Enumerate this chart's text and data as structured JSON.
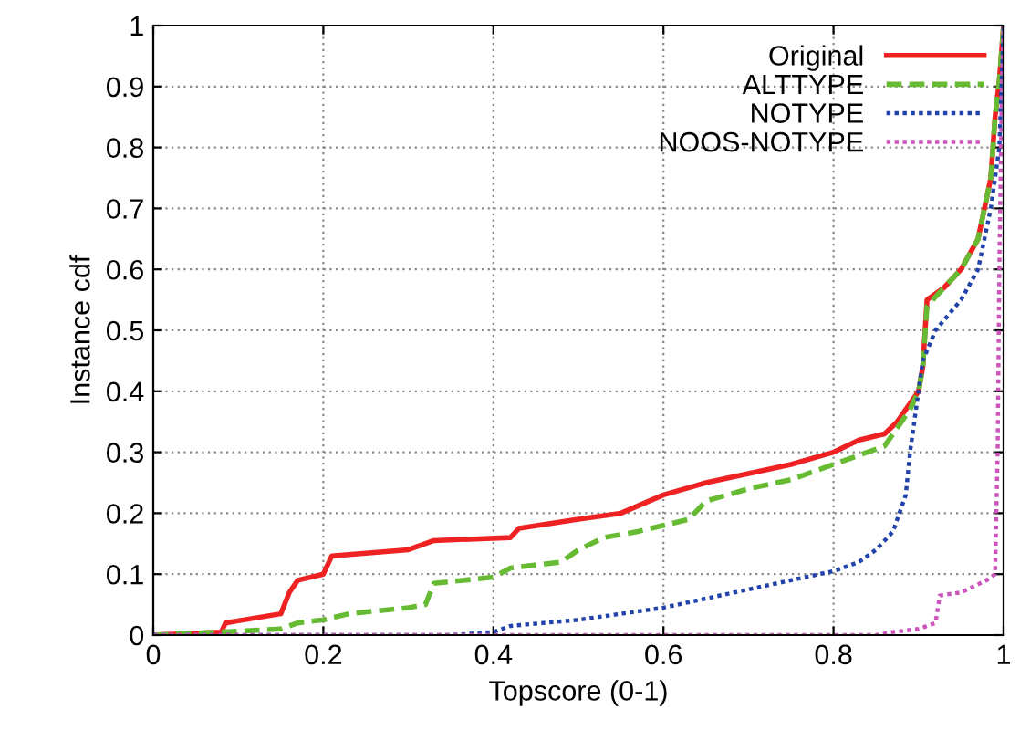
{
  "chart_data": {
    "type": "line",
    "xlabel": "Topscore (0-1)",
    "ylabel": "Instance cdf",
    "xlim": [
      0,
      1
    ],
    "ylim": [
      0,
      1
    ],
    "xticks": [
      0,
      0.2,
      0.4,
      0.6,
      0.8,
      1
    ],
    "yticks": [
      0,
      0.1,
      0.2,
      0.3,
      0.4,
      0.5,
      0.6,
      0.7,
      0.8,
      0.9,
      1
    ],
    "grid": true,
    "legend": "top right",
    "marker": "none",
    "series": [
      {
        "name": "Original",
        "color": "#ee2222",
        "line_style": "solid",
        "x": [
          0,
          0.08,
          0.085,
          0.15,
          0.16,
          0.17,
          0.2,
          0.21,
          0.3,
          0.33,
          0.42,
          0.43,
          0.5,
          0.55,
          0.6,
          0.65,
          0.7,
          0.75,
          0.8,
          0.83,
          0.86,
          0.875,
          0.89,
          0.9,
          0.905,
          0.91,
          0.93,
          0.95,
          0.97,
          0.985,
          0.99,
          0.995,
          1
        ],
        "values": [
          0,
          0.005,
          0.02,
          0.035,
          0.07,
          0.09,
          0.1,
          0.13,
          0.14,
          0.155,
          0.16,
          0.175,
          0.19,
          0.2,
          0.23,
          0.25,
          0.265,
          0.28,
          0.3,
          0.32,
          0.33,
          0.35,
          0.38,
          0.4,
          0.44,
          0.55,
          0.57,
          0.6,
          0.65,
          0.75,
          0.85,
          0.91,
          1
        ]
      },
      {
        "name": "ALTTYPE",
        "color": "#66bb33",
        "line_style": "dashed",
        "x": [
          0,
          0.08,
          0.15,
          0.17,
          0.2,
          0.23,
          0.3,
          0.32,
          0.33,
          0.4,
          0.42,
          0.48,
          0.5,
          0.53,
          0.57,
          0.6,
          0.63,
          0.65,
          0.7,
          0.75,
          0.8,
          0.86,
          0.875,
          0.89,
          0.9,
          0.905,
          0.91,
          0.93,
          0.95,
          0.97,
          0.985,
          0.99,
          0.995,
          1
        ],
        "values": [
          0,
          0.005,
          0.01,
          0.02,
          0.025,
          0.035,
          0.045,
          0.05,
          0.085,
          0.095,
          0.11,
          0.12,
          0.14,
          0.16,
          0.17,
          0.18,
          0.19,
          0.22,
          0.24,
          0.255,
          0.28,
          0.31,
          0.34,
          0.37,
          0.4,
          0.44,
          0.54,
          0.57,
          0.6,
          0.65,
          0.75,
          0.85,
          0.91,
          1
        ]
      },
      {
        "name": "NOTYPE",
        "color": "#2244aa",
        "line_style": "dotted",
        "x": [
          0,
          0.35,
          0.4,
          0.42,
          0.5,
          0.55,
          0.6,
          0.65,
          0.7,
          0.75,
          0.8,
          0.83,
          0.85,
          0.87,
          0.885,
          0.89,
          0.9,
          0.905,
          0.92,
          0.95,
          0.97,
          0.985,
          0.995,
          1
        ],
        "values": [
          0,
          0,
          0.005,
          0.015,
          0.025,
          0.035,
          0.045,
          0.06,
          0.075,
          0.09,
          0.105,
          0.12,
          0.14,
          0.17,
          0.23,
          0.3,
          0.4,
          0.45,
          0.5,
          0.55,
          0.6,
          0.7,
          0.8,
          1
        ]
      },
      {
        "name": "NOOS-NOTYPE",
        "color": "#cc55bb",
        "line_style": "dotted",
        "x": [
          0,
          0.85,
          0.87,
          0.9,
          0.92,
          0.925,
          0.95,
          0.98,
          0.99,
          0.993,
          0.995,
          0.998,
          1
        ],
        "values": [
          0,
          0,
          0.005,
          0.01,
          0.02,
          0.065,
          0.07,
          0.09,
          0.1,
          0.3,
          0.6,
          0.9,
          1
        ]
      }
    ]
  }
}
